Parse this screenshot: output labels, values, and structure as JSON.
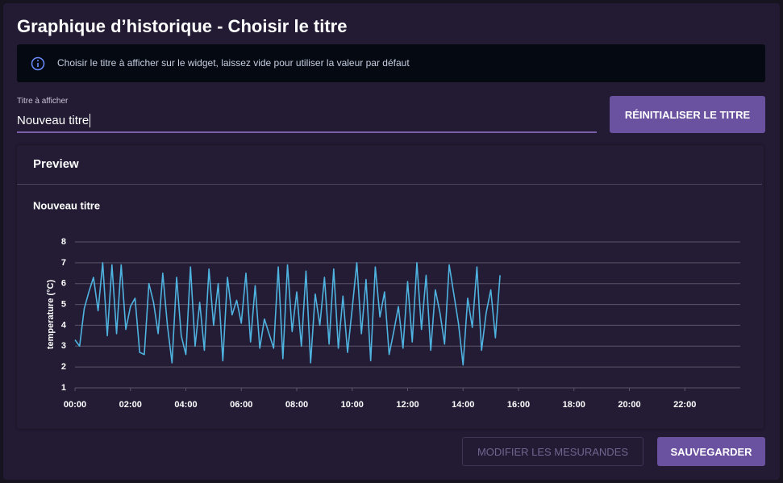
{
  "dialog": {
    "title": "Graphique d’historique - Choisir le titre",
    "info": "Choisir le titre à afficher sur le widget, laissez vide pour utiliser la valeur par défaut",
    "input_label": "Titre à afficher",
    "input_value": "Nouveau titre",
    "reset_button": "RÉINITIALISER LE TITRE",
    "preview_heading": "Preview",
    "edit_button": "MODIFIER LES MESURANDES",
    "save_button": "SAUVEGARDER"
  },
  "chart_data": {
    "type": "line",
    "title": "Nouveau titre",
    "y_label": "temperature (°C)",
    "color": "#4fb3e0",
    "grid": true,
    "x": [
      0,
      10,
      20,
      30,
      40,
      50,
      60,
      70,
      80,
      90,
      100,
      110,
      120,
      130,
      140,
      150,
      160,
      170,
      180,
      190,
      200,
      210,
      220,
      230,
      240,
      250,
      260,
      270,
      280,
      290,
      300,
      310,
      320,
      330,
      340,
      350,
      360,
      370,
      380,
      390,
      400,
      410,
      420,
      430,
      440,
      450,
      460,
      470,
      480,
      490,
      500,
      510,
      520,
      530,
      540,
      550,
      560,
      570,
      580,
      590,
      600,
      610,
      620,
      630,
      640,
      650,
      660,
      670,
      680,
      690,
      700,
      710,
      720,
      730,
      740,
      750,
      760,
      770,
      780,
      790,
      800,
      810,
      820,
      830,
      840,
      850,
      860,
      870,
      880,
      890,
      900,
      910,
      920
    ],
    "values": [
      3.3,
      3.0,
      4.8,
      5.6,
      6.3,
      4.7,
      7.0,
      3.5,
      6.9,
      3.6,
      6.9,
      3.8,
      4.9,
      5.3,
      2.7,
      2.6,
      6.0,
      5.1,
      3.6,
      6.5,
      4.0,
      2.2,
      6.3,
      3.5,
      2.6,
      6.8,
      3.0,
      5.1,
      2.8,
      6.7,
      4.0,
      6.0,
      2.3,
      6.3,
      4.5,
      5.2,
      4.1,
      6.5,
      3.2,
      5.9,
      2.9,
      4.3,
      3.6,
      2.9,
      6.8,
      2.4,
      6.9,
      3.7,
      5.6,
      3.0,
      6.6,
      2.2,
      5.5,
      4.0,
      6.3,
      3.1,
      6.7,
      2.9,
      5.4,
      2.7,
      4.8,
      7.0,
      3.6,
      6.2,
      2.3,
      6.8,
      4.4,
      5.6,
      2.6,
      3.7,
      4.9,
      2.9,
      6.1,
      3.2,
      7.0,
      3.8,
      6.4,
      2.8,
      5.7,
      4.6,
      3.1,
      6.9,
      5.5,
      4.1,
      2.1,
      5.3,
      3.9,
      6.8,
      2.8,
      4.6,
      5.7,
      3.4,
      6.4
    ],
    "xlim": [
      0,
      1440
    ],
    "xticks": [
      {
        "value": 0,
        "label": "00:00"
      },
      {
        "value": 120,
        "label": "02:00"
      },
      {
        "value": 240,
        "label": "04:00"
      },
      {
        "value": 360,
        "label": "06:00"
      },
      {
        "value": 480,
        "label": "08:00"
      },
      {
        "value": 600,
        "label": "10:00"
      },
      {
        "value": 720,
        "label": "12:00"
      },
      {
        "value": 840,
        "label": "14:00"
      },
      {
        "value": 960,
        "label": "16:00"
      },
      {
        "value": 1080,
        "label": "18:00"
      },
      {
        "value": 1200,
        "label": "20:00"
      },
      {
        "value": 1320,
        "label": "22:00"
      }
    ],
    "ylim": [
      1,
      8
    ],
    "yticks": [
      1,
      2,
      3,
      4,
      5,
      6,
      7,
      8
    ]
  }
}
